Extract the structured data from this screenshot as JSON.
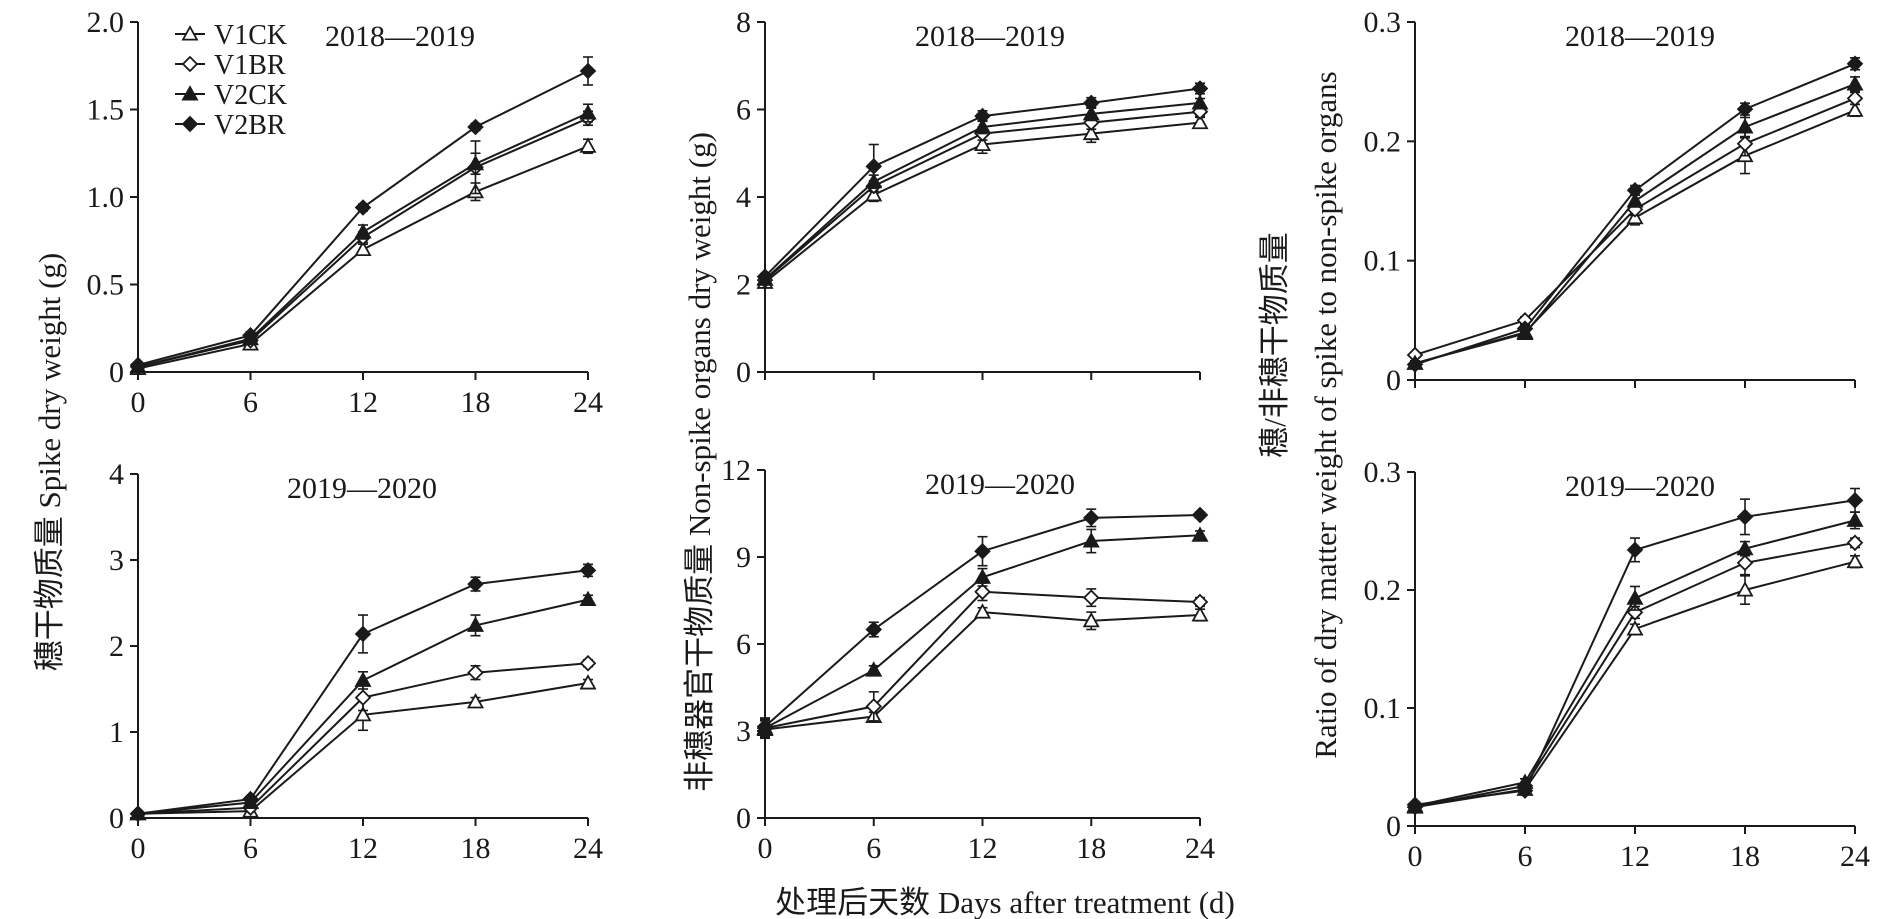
{
  "figure": {
    "xlabel": "处理后天数 Days after treatment (d)",
    "ylabels": [
      "穗干物质量 Spike dry weight (g)",
      "非穗器官干物质量 Non-spike organs dry weight (g)",
      "穗/非穗干物质量",
      "Ratio of dry matter weight of spike to non-spike organs"
    ]
  },
  "legend": {
    "entries": [
      {
        "name": "V1CK",
        "marker": "triangle-open"
      },
      {
        "name": "V1BR",
        "marker": "diamond-open"
      },
      {
        "name": "V2CK",
        "marker": "triangle-filled"
      },
      {
        "name": "V2BR",
        "marker": "diamond-filled"
      }
    ]
  },
  "chart_data": [
    {
      "type": "line",
      "title": "2018—2019",
      "x": [
        0,
        6,
        12,
        18,
        24
      ],
      "x_tick_labels": [
        "0",
        "6",
        "12",
        "18",
        "24"
      ],
      "ylim": [
        0,
        2.0
      ],
      "y_ticks": [
        0,
        0.5,
        1.0,
        1.5,
        2.0
      ],
      "y_tick_labels": [
        "0",
        "0.5",
        "1.0",
        "1.5",
        "2.0"
      ],
      "series": [
        {
          "name": "V1CK",
          "values": [
            0.02,
            0.16,
            0.7,
            1.03,
            1.29
          ],
          "errors": [
            0.01,
            0.02,
            0.03,
            0.05,
            0.04
          ]
        },
        {
          "name": "V1BR",
          "values": [
            0.03,
            0.18,
            0.77,
            1.17,
            1.45
          ],
          "errors": [
            0.01,
            0.02,
            0.03,
            0.15,
            0.04
          ]
        },
        {
          "name": "V2CK",
          "values": [
            0.03,
            0.19,
            0.8,
            1.19,
            1.48
          ],
          "errors": [
            0.01,
            0.02,
            0.04,
            0.06,
            0.05
          ]
        },
        {
          "name": "V2BR",
          "values": [
            0.04,
            0.21,
            0.94,
            1.4,
            1.72
          ],
          "errors": [
            0.01,
            0.02,
            0.02,
            0.02,
            0.08
          ]
        }
      ]
    },
    {
      "type": "line",
      "title": "2018—2019",
      "x": [
        0,
        6,
        12,
        18,
        24
      ],
      "x_tick_labels": [
        "",
        "",
        "",
        "",
        ""
      ],
      "ylim": [
        0,
        8
      ],
      "y_ticks": [
        0,
        2,
        4,
        6,
        8
      ],
      "y_tick_labels": [
        "0",
        "2",
        "4",
        "6",
        "8"
      ],
      "series": [
        {
          "name": "V1CK",
          "values": [
            2.05,
            4.05,
            5.2,
            5.45,
            5.7
          ],
          "errors": [
            0.06,
            0.15,
            0.2,
            0.2,
            0.12
          ]
        },
        {
          "name": "V1BR",
          "values": [
            2.1,
            4.25,
            5.45,
            5.7,
            5.95
          ],
          "errors": [
            0.06,
            0.12,
            0.15,
            0.15,
            0.1
          ]
        },
        {
          "name": "V2CK",
          "values": [
            2.12,
            4.35,
            5.6,
            5.9,
            6.15
          ],
          "errors": [
            0.06,
            0.15,
            0.15,
            0.15,
            0.1
          ]
        },
        {
          "name": "V2BR",
          "values": [
            2.18,
            4.7,
            5.85,
            6.15,
            6.48
          ],
          "errors": [
            0.06,
            0.5,
            0.12,
            0.12,
            0.12
          ]
        }
      ]
    },
    {
      "type": "line",
      "title": "2018—2019",
      "x": [
        0,
        6,
        12,
        18,
        24
      ],
      "x_tick_labels": [
        "",
        "",
        "",
        "",
        ""
      ],
      "ylim": [
        0,
        0.3
      ],
      "y_ticks": [
        0,
        0.1,
        0.2,
        0.3
      ],
      "y_tick_labels": [
        "0",
        "0.1",
        "0.2",
        "0.3"
      ],
      "series": [
        {
          "name": "V1CK",
          "values": [
            0.014,
            0.04,
            0.136,
            0.188,
            0.226
          ],
          "errors": [
            0.002,
            0.003,
            0.006,
            0.015,
            0.005
          ]
        },
        {
          "name": "V1BR",
          "values": [
            0.021,
            0.05,
            0.143,
            0.198,
            0.236
          ],
          "errors": [
            0.002,
            0.003,
            0.005,
            0.01,
            0.005
          ]
        },
        {
          "name": "V2CK",
          "values": [
            0.014,
            0.039,
            0.15,
            0.212,
            0.248
          ],
          "errors": [
            0.002,
            0.003,
            0.005,
            0.008,
            0.006
          ]
        },
        {
          "name": "V2BR",
          "values": [
            0.013,
            0.043,
            0.159,
            0.227,
            0.265
          ],
          "errors": [
            0.002,
            0.003,
            0.004,
            0.005,
            0.005
          ]
        }
      ]
    },
    {
      "type": "line",
      "title": "2019—2020",
      "x": [
        0,
        6,
        12,
        18,
        24
      ],
      "x_tick_labels": [
        "0",
        "6",
        "12",
        "18",
        "24"
      ],
      "ylim": [
        0,
        4
      ],
      "y_ticks": [
        0,
        1,
        2,
        3,
        4
      ],
      "y_tick_labels": [
        "0",
        "1",
        "2",
        "3",
        "4"
      ],
      "series": [
        {
          "name": "V1CK",
          "values": [
            0.05,
            0.08,
            1.2,
            1.35,
            1.57
          ],
          "errors": [
            0.02,
            0.03,
            0.18,
            0.05,
            0.04
          ]
        },
        {
          "name": "V1BR",
          "values": [
            0.05,
            0.12,
            1.4,
            1.69,
            1.8
          ],
          "errors": [
            0.02,
            0.03,
            0.15,
            0.08,
            0.04
          ]
        },
        {
          "name": "V2CK",
          "values": [
            0.05,
            0.18,
            1.6,
            2.24,
            2.54
          ],
          "errors": [
            0.02,
            0.03,
            0.1,
            0.12,
            0.05
          ]
        },
        {
          "name": "V2BR",
          "values": [
            0.05,
            0.22,
            2.14,
            2.72,
            2.88
          ],
          "errors": [
            0.02,
            0.03,
            0.22,
            0.08,
            0.07
          ]
        }
      ]
    },
    {
      "type": "line",
      "title": "2019—2020",
      "x": [
        0,
        6,
        12,
        18,
        24
      ],
      "x_tick_labels": [
        "0",
        "6",
        "12",
        "18",
        "24"
      ],
      "ylim": [
        0,
        12
      ],
      "y_ticks": [
        0,
        3,
        6,
        9,
        12
      ],
      "y_tick_labels": [
        "0",
        "3",
        "6",
        "9",
        "12"
      ],
      "series": [
        {
          "name": "V1CK",
          "values": [
            3.05,
            3.5,
            7.1,
            6.8,
            7.0
          ],
          "errors": [
            0.3,
            0.15,
            0.15,
            0.3,
            0.2
          ]
        },
        {
          "name": "V1BR",
          "values": [
            3.1,
            3.85,
            7.8,
            7.6,
            7.45
          ],
          "errors": [
            0.3,
            0.5,
            0.3,
            0.3,
            0.15
          ]
        },
        {
          "name": "V2CK",
          "values": [
            3.1,
            5.1,
            8.3,
            9.55,
            9.75
          ],
          "errors": [
            0.3,
            0.15,
            0.3,
            0.4,
            0.15
          ]
        },
        {
          "name": "V2BR",
          "values": [
            3.15,
            6.5,
            9.2,
            10.35,
            10.45
          ],
          "errors": [
            0.3,
            0.25,
            0.5,
            0.3,
            0.1
          ]
        }
      ]
    },
    {
      "type": "line",
      "title": "2019—2020",
      "x": [
        0,
        6,
        12,
        18,
        24
      ],
      "x_tick_labels": [
        "0",
        "6",
        "12",
        "18",
        "24"
      ],
      "ylim": [
        0,
        0.3
      ],
      "y_ticks": [
        0,
        0.1,
        0.2,
        0.3
      ],
      "y_tick_labels": [
        "0",
        "0.1",
        "0.2",
        "0.3"
      ],
      "series": [
        {
          "name": "V1CK",
          "values": [
            0.016,
            0.031,
            0.167,
            0.2,
            0.224
          ],
          "errors": [
            0.002,
            0.003,
            0.004,
            0.012,
            0.005
          ]
        },
        {
          "name": "V1BR",
          "values": [
            0.016,
            0.034,
            0.181,
            0.223,
            0.24
          ],
          "errors": [
            0.002,
            0.003,
            0.005,
            0.01,
            0.004
          ]
        },
        {
          "name": "V2CK",
          "values": [
            0.017,
            0.037,
            0.193,
            0.235,
            0.259
          ],
          "errors": [
            0.002,
            0.003,
            0.01,
            0.006,
            0.007
          ]
        },
        {
          "name": "V2BR",
          "values": [
            0.018,
            0.03,
            0.234,
            0.262,
            0.276
          ],
          "errors": [
            0.002,
            0.003,
            0.01,
            0.015,
            0.01
          ]
        }
      ]
    }
  ]
}
